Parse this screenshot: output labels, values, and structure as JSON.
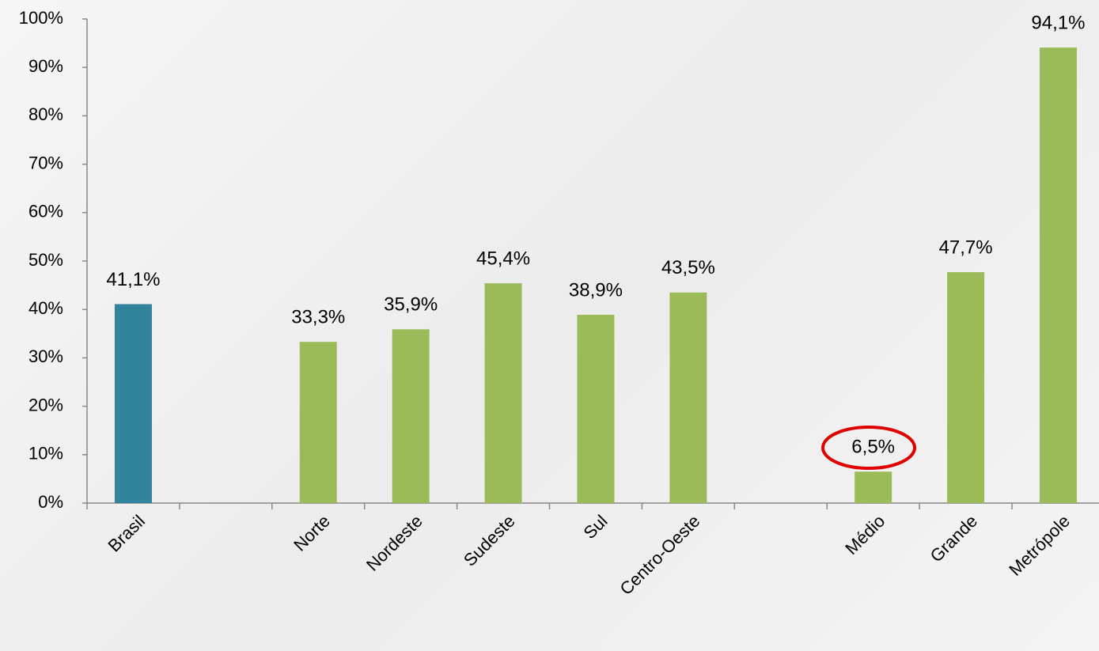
{
  "chart_data": {
    "type": "bar",
    "categories": [
      "Brasil",
      null,
      "Norte",
      "Nordeste",
      "Sudeste",
      "Sul",
      "Centro-Oeste",
      null,
      "Médio",
      "Grande",
      "Metrópole"
    ],
    "values": [
      41.1,
      null,
      33.3,
      35.9,
      45.4,
      38.9,
      43.5,
      null,
      6.5,
      47.7,
      94.1
    ],
    "value_labels": [
      "41,1%",
      null,
      "33,3%",
      "35,9%",
      "45,4%",
      "38,9%",
      "43,5%",
      null,
      "6,5%",
      "47,7%",
      "94,1%"
    ],
    "colors": [
      "#31849b",
      null,
      "#9bbb59",
      "#9bbb59",
      "#9bbb59",
      "#9bbb59",
      "#9bbb59",
      null,
      "#9bbb59",
      "#9bbb59",
      "#9bbb59"
    ],
    "ylim": [
      0,
      100
    ],
    "yticks": [
      {
        "value": 0,
        "label": "0%"
      },
      {
        "value": 10,
        "label": "10%"
      },
      {
        "value": 20,
        "label": "20%"
      },
      {
        "value": 30,
        "label": "30%"
      },
      {
        "value": 40,
        "label": "40%"
      },
      {
        "value": 50,
        "label": "50%"
      },
      {
        "value": 60,
        "label": "60%"
      },
      {
        "value": 70,
        "label": "70%"
      },
      {
        "value": 80,
        "label": "80%"
      },
      {
        "value": 90,
        "label": "90%"
      },
      {
        "value": 100,
        "label": "100%"
      }
    ],
    "grid": false
  }
}
